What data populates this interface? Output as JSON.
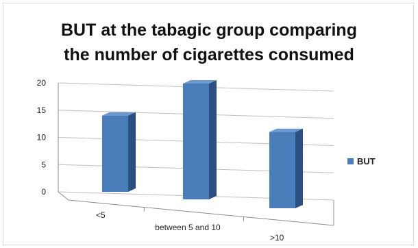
{
  "chart_data": {
    "type": "bar",
    "title_lines": [
      "BUT at the tabagic group comparing",
      "the number of cigarettes consumed"
    ],
    "categories": [
      "<5",
      "between 5 and 10",
      ">10"
    ],
    "series": [
      {
        "name": "BUT",
        "values": [
          14,
          20,
          14
        ]
      }
    ],
    "yticks": [
      "0",
      "5",
      "10",
      "15",
      "20"
    ],
    "ylim": [
      0,
      20
    ],
    "grid": true,
    "legend_position": "right",
    "bar_color": "#4a7ebb",
    "bar_side_color": "#2c4f7f",
    "bar_top_color": "#6d97cf"
  }
}
